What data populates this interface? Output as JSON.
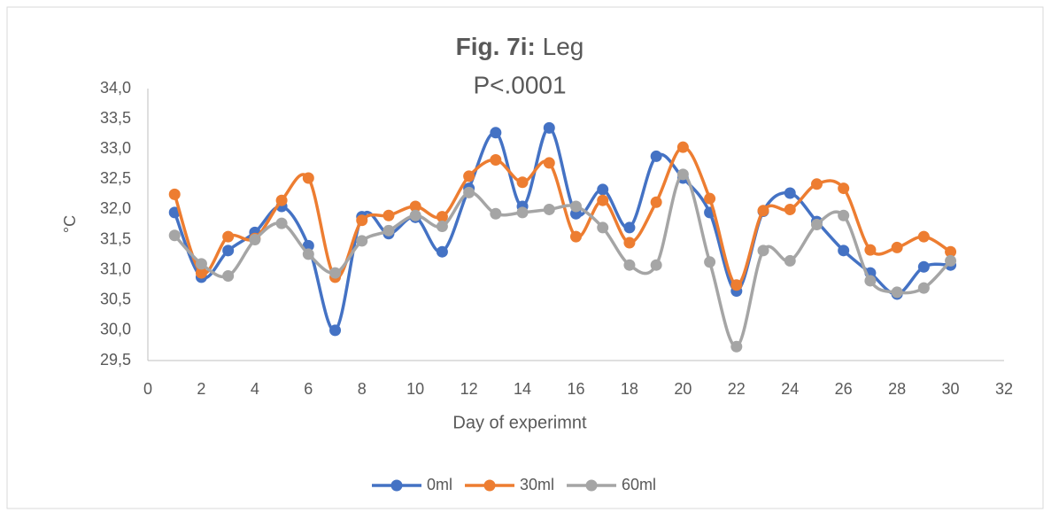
{
  "chart_data": {
    "type": "line",
    "title": {
      "bold": "Fig. 7i:",
      "text": "Leg"
    },
    "subtitle": "P<.0001",
    "x_label": "Day of experimnt",
    "y_label": "°C",
    "x": [
      1,
      2,
      3,
      4,
      5,
      6,
      7,
      8,
      9,
      10,
      11,
      12,
      13,
      14,
      15,
      16,
      17,
      18,
      19,
      20,
      21,
      22,
      23,
      24,
      25,
      26,
      27,
      28,
      29,
      30
    ],
    "series": [
      {
        "name": "0ml",
        "color": "#4472c4",
        "values": [
          31.95,
          30.88,
          31.32,
          31.62,
          32.05,
          31.4,
          30.0,
          31.88,
          31.6,
          31.87,
          31.3,
          32.35,
          33.27,
          32.05,
          33.35,
          31.93,
          32.33,
          31.7,
          32.88,
          32.52,
          31.95,
          30.65,
          31.97,
          32.27,
          31.8,
          31.32,
          30.95,
          30.6,
          31.05,
          31.08
        ]
      },
      {
        "name": "30ml",
        "color": "#ed7d31",
        "values": [
          32.25,
          30.95,
          31.55,
          31.52,
          32.15,
          32.52,
          30.88,
          31.82,
          31.9,
          32.05,
          31.88,
          32.55,
          32.82,
          32.45,
          32.77,
          31.55,
          32.15,
          31.45,
          32.12,
          33.03,
          32.18,
          30.75,
          31.98,
          32.0,
          32.42,
          32.35,
          31.33,
          31.37,
          31.55,
          31.3
        ]
      },
      {
        "name": "60ml",
        "color": "#a5a5a5",
        "values": [
          31.57,
          31.1,
          30.9,
          31.5,
          31.77,
          31.26,
          30.95,
          31.48,
          31.65,
          31.9,
          31.72,
          32.28,
          31.93,
          31.95,
          32.0,
          32.05,
          31.7,
          31.08,
          31.08,
          32.58,
          31.13,
          29.73,
          31.32,
          31.15,
          31.75,
          31.9,
          30.82,
          30.63,
          30.7,
          31.15
        ]
      }
    ],
    "xlim": [
      0,
      32
    ],
    "xticks": [
      0,
      2,
      4,
      6,
      8,
      10,
      12,
      14,
      16,
      18,
      20,
      22,
      24,
      26,
      28,
      30,
      32
    ],
    "ylim": [
      29.5,
      34
    ],
    "yticks": [
      {
        "value": 29.5,
        "label": "29,5"
      },
      {
        "value": 30,
        "label": "30,0"
      },
      {
        "value": 30.5,
        "label": "30,5"
      },
      {
        "value": 31,
        "label": "31,0"
      },
      {
        "value": 31.5,
        "label": "31,5"
      },
      {
        "value": 32,
        "label": "32,0"
      },
      {
        "value": 32.5,
        "label": "32,5"
      },
      {
        "value": 33,
        "label": "33,0"
      },
      {
        "value": 33.5,
        "label": "33,5"
      },
      {
        "value": 34,
        "label": "34,0"
      }
    ],
    "smooth": true,
    "legend": "bottom"
  }
}
